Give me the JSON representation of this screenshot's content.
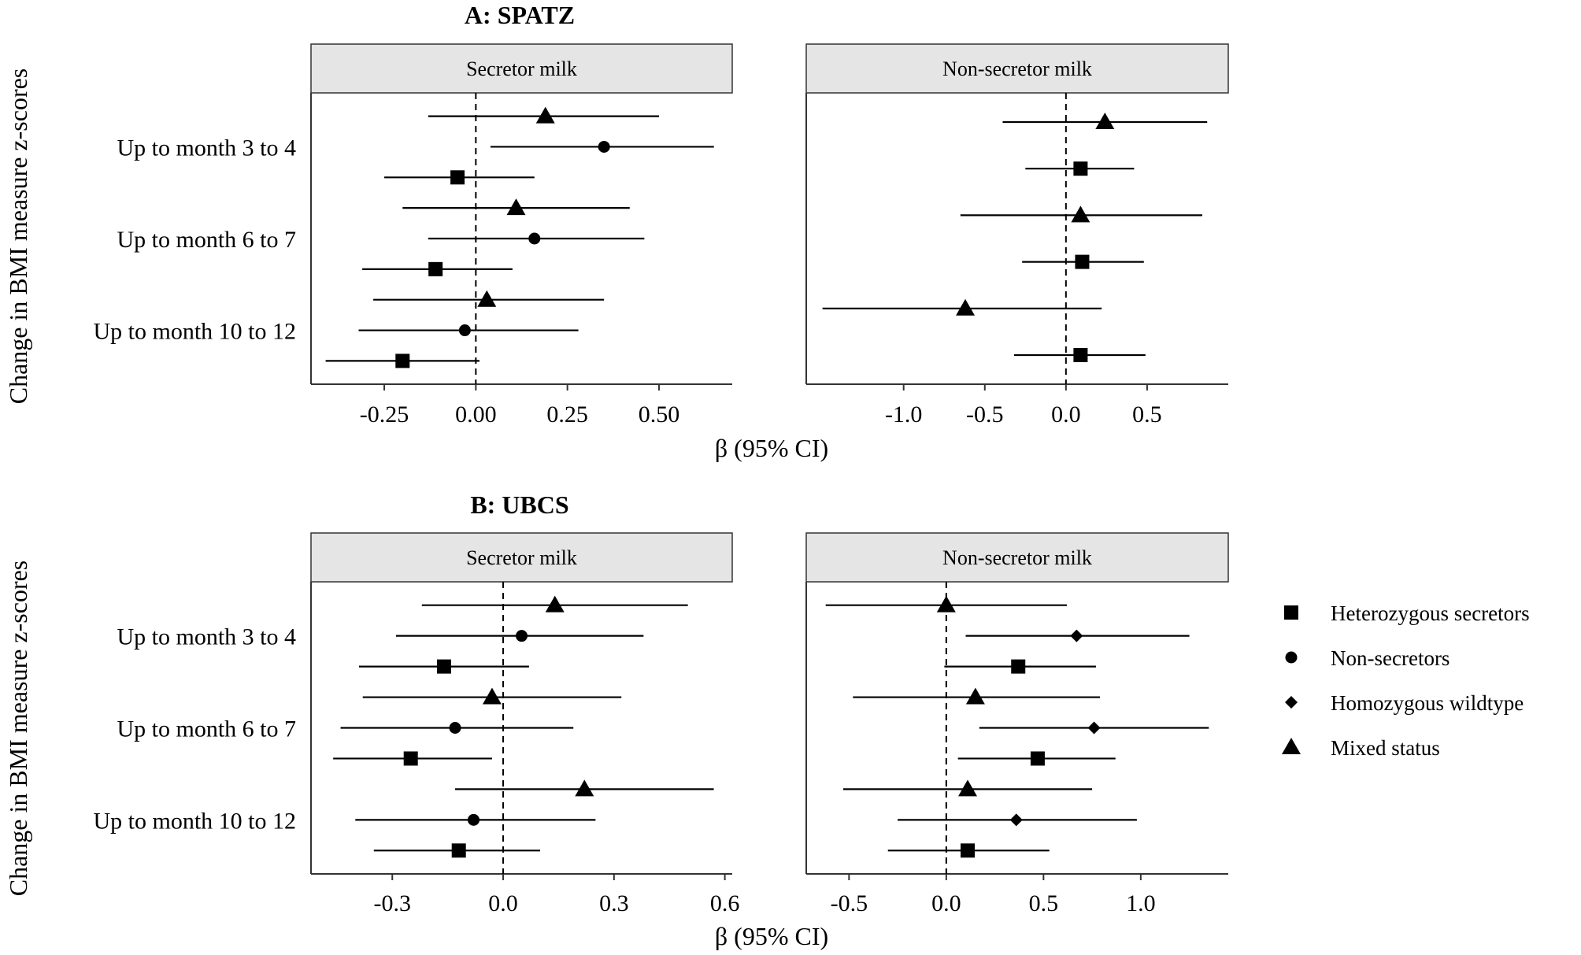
{
  "chart_data": [
    {
      "type": "forest",
      "title": "A: SPATZ",
      "ylabel": "Change in BMI measure z-scores",
      "xlabel": "β (95% CI)",
      "categories": [
        "Up to month 3 to 4",
        "Up to month 6 to 7",
        "Up to month 10 to 12"
      ],
      "facets": [
        {
          "label": "Secretor milk",
          "xlim": [
            -0.45,
            0.7
          ],
          "xticks": [
            -0.25,
            0.0,
            0.25,
            0.5
          ],
          "tick_labels": [
            "-0.25",
            "0.00",
            "0.25",
            "0.50"
          ],
          "points": [
            {
              "category": "Up to month 3 to 4",
              "group": "Mixed status",
              "estimate": 0.19,
              "lower": -0.13,
              "upper": 0.5
            },
            {
              "category": "Up to month 3 to 4",
              "group": "Non-secretors",
              "estimate": 0.35,
              "lower": 0.04,
              "upper": 0.65
            },
            {
              "category": "Up to month 3 to 4",
              "group": "Heterozygous secretors",
              "estimate": -0.05,
              "lower": -0.25,
              "upper": 0.16
            },
            {
              "category": "Up to month 6 to 7",
              "group": "Mixed status",
              "estimate": 0.11,
              "lower": -0.2,
              "upper": 0.42
            },
            {
              "category": "Up to month 6 to 7",
              "group": "Non-secretors",
              "estimate": 0.16,
              "lower": -0.13,
              "upper": 0.46
            },
            {
              "category": "Up to month 6 to 7",
              "group": "Heterozygous secretors",
              "estimate": -0.11,
              "lower": -0.31,
              "upper": 0.1
            },
            {
              "category": "Up to month 10 to 12",
              "group": "Mixed status",
              "estimate": 0.03,
              "lower": -0.28,
              "upper": 0.35
            },
            {
              "category": "Up to month 10 to 12",
              "group": "Non-secretors",
              "estimate": -0.03,
              "lower": -0.32,
              "upper": 0.28
            },
            {
              "category": "Up to month 10 to 12",
              "group": "Heterozygous secretors",
              "estimate": -0.2,
              "lower": -0.41,
              "upper": 0.01
            }
          ]
        },
        {
          "label": "Non-secretor milk",
          "xlim": [
            -1.6,
            1.0
          ],
          "xticks": [
            -1.0,
            -0.5,
            0.0,
            0.5
          ],
          "tick_labels": [
            "-1.0",
            "-0.5",
            "0.0",
            "0.5"
          ],
          "points": [
            {
              "category": "Up to month 3 to 4",
              "group": "Mixed status",
              "estimate": 0.24,
              "lower": -0.39,
              "upper": 0.87
            },
            {
              "category": "Up to month 3 to 4",
              "group": "Heterozygous secretors",
              "estimate": 0.09,
              "lower": -0.25,
              "upper": 0.42
            },
            {
              "category": "Up to month 6 to 7",
              "group": "Mixed status",
              "estimate": 0.09,
              "lower": -0.65,
              "upper": 0.84
            },
            {
              "category": "Up to month 6 to 7",
              "group": "Heterozygous secretors",
              "estimate": 0.1,
              "lower": -0.27,
              "upper": 0.48
            },
            {
              "category": "Up to month 10 to 12",
              "group": "Mixed status",
              "estimate": -0.62,
              "lower": -1.5,
              "upper": 0.22
            },
            {
              "category": "Up to month 10 to 12",
              "group": "Heterozygous secretors",
              "estimate": 0.09,
              "lower": -0.32,
              "upper": 0.49
            }
          ]
        }
      ]
    },
    {
      "type": "forest",
      "title": "B: UBCS",
      "ylabel": "Change in BMI measure z-scores",
      "xlabel": "β (95% CI)",
      "categories": [
        "Up to month 3 to 4",
        "Up to month 6 to 7",
        "Up to month 10 to 12"
      ],
      "facets": [
        {
          "label": "Secretor milk",
          "xlim": [
            -0.52,
            0.62
          ],
          "xticks": [
            -0.3,
            0.0,
            0.3,
            0.6
          ],
          "tick_labels": [
            "-0.3",
            "0.0",
            "0.3",
            "0.6"
          ],
          "points": [
            {
              "category": "Up to month 3 to 4",
              "group": "Mixed status",
              "estimate": 0.14,
              "lower": -0.22,
              "upper": 0.5
            },
            {
              "category": "Up to month 3 to 4",
              "group": "Non-secretors",
              "estimate": 0.05,
              "lower": -0.29,
              "upper": 0.38
            },
            {
              "category": "Up to month 3 to 4",
              "group": "Heterozygous secretors",
              "estimate": -0.16,
              "lower": -0.39,
              "upper": 0.07
            },
            {
              "category": "Up to month 6 to 7",
              "group": "Mixed status",
              "estimate": -0.03,
              "lower": -0.38,
              "upper": 0.32
            },
            {
              "category": "Up to month 6 to 7",
              "group": "Non-secretors",
              "estimate": -0.13,
              "lower": -0.44,
              "upper": 0.19
            },
            {
              "category": "Up to month 6 to 7",
              "group": "Heterozygous secretors",
              "estimate": -0.25,
              "lower": -0.46,
              "upper": -0.03
            },
            {
              "category": "Up to month 10 to 12",
              "group": "Mixed status",
              "estimate": 0.22,
              "lower": -0.13,
              "upper": 0.57
            },
            {
              "category": "Up to month 10 to 12",
              "group": "Non-secretors",
              "estimate": -0.08,
              "lower": -0.4,
              "upper": 0.25
            },
            {
              "category": "Up to month 10 to 12",
              "group": "Heterozygous secretors",
              "estimate": -0.12,
              "lower": -0.35,
              "upper": 0.1
            }
          ]
        },
        {
          "label": "Non-secretor milk",
          "xlim": [
            -0.72,
            1.45
          ],
          "xticks": [
            -0.5,
            0.0,
            0.5,
            1.0
          ],
          "tick_labels": [
            "-0.5",
            "0.0",
            "0.5",
            "1.0"
          ],
          "points": [
            {
              "category": "Up to month 3 to 4",
              "group": "Mixed status",
              "estimate": 0.0,
              "lower": -0.62,
              "upper": 0.62
            },
            {
              "category": "Up to month 3 to 4",
              "group": "Homozygous wildtype",
              "estimate": 0.67,
              "lower": 0.1,
              "upper": 1.25
            },
            {
              "category": "Up to month 3 to 4",
              "group": "Heterozygous secretors",
              "estimate": 0.37,
              "lower": -0.01,
              "upper": 0.77
            },
            {
              "category": "Up to month 6 to 7",
              "group": "Mixed status",
              "estimate": 0.15,
              "lower": -0.48,
              "upper": 0.79
            },
            {
              "category": "Up to month 6 to 7",
              "group": "Homozygous wildtype",
              "estimate": 0.76,
              "lower": 0.17,
              "upper": 1.35
            },
            {
              "category": "Up to month 6 to 7",
              "group": "Heterozygous secretors",
              "estimate": 0.47,
              "lower": 0.06,
              "upper": 0.87
            },
            {
              "category": "Up to month 10 to 12",
              "group": "Mixed status",
              "estimate": 0.11,
              "lower": -0.53,
              "upper": 0.75
            },
            {
              "category": "Up to month 10 to 12",
              "group": "Homozygous wildtype",
              "estimate": 0.36,
              "lower": -0.25,
              "upper": 0.98
            },
            {
              "category": "Up to month 10 to 12",
              "group": "Heterozygous secretors",
              "estimate": 0.11,
              "lower": -0.3,
              "upper": 0.53
            }
          ]
        }
      ]
    }
  ],
  "legend": {
    "position": "right",
    "items": [
      {
        "label": "Heterozygous secretors",
        "shape": "square"
      },
      {
        "label": "Non-secretors",
        "shape": "circle"
      },
      {
        "label": "Homozygous wildtype",
        "shape": "diamond"
      },
      {
        "label": "Mixed status",
        "shape": "triangle"
      }
    ]
  },
  "colors": {
    "strip_fill": "#e5e5e5",
    "ink": "#000000",
    "background": "#ffffff"
  }
}
